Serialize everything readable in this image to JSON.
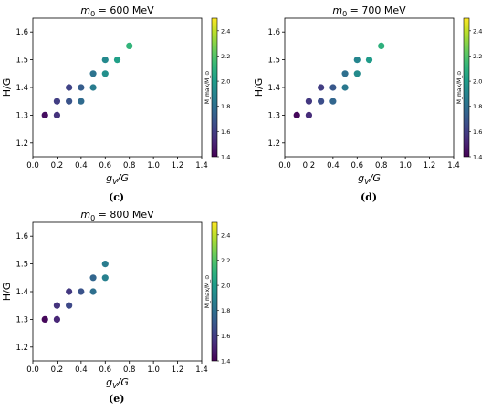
{
  "colorbar": {
    "vmin": 1.4,
    "vmax": 2.5,
    "ticks": [
      "1.4",
      "1.6",
      "1.8",
      "2.0",
      "2.2",
      "2.4"
    ],
    "tick_values": [
      1.4,
      1.6,
      1.8,
      2.0,
      2.2,
      2.4
    ],
    "label": "M_max/M_⊙",
    "colormap": "viridis"
  },
  "chart_data": [
    {
      "type": "scatter",
      "title": "m0 = 600 MeV",
      "title_prefix": "m",
      "title_sub": "0",
      "title_suffix": " = 600 MeV",
      "xlabel_main": "g",
      "xlabel_sub": "V",
      "xlabel_tail": "/G",
      "ylabel": "H/G",
      "xlim": [
        0.0,
        1.4
      ],
      "ylim": [
        1.15,
        1.65
      ],
      "xticks": [
        "0.0",
        "0.2",
        "0.4",
        "0.6",
        "0.8",
        "1.0",
        "1.2",
        "1.4"
      ],
      "yticks": [
        "1.2",
        "1.3",
        "1.4",
        "1.5",
        "1.6"
      ],
      "sublabel": "(c)",
      "points": [
        {
          "x": 0.1,
          "y": 1.3,
          "c": 1.44
        },
        {
          "x": 0.2,
          "y": 1.3,
          "c": 1.56
        },
        {
          "x": 0.2,
          "y": 1.35,
          "c": 1.6
        },
        {
          "x": 0.3,
          "y": 1.35,
          "c": 1.68
        },
        {
          "x": 0.3,
          "y": 1.4,
          "c": 1.62
        },
        {
          "x": 0.4,
          "y": 1.35,
          "c": 1.78
        },
        {
          "x": 0.4,
          "y": 1.4,
          "c": 1.72
        },
        {
          "x": 0.5,
          "y": 1.4,
          "c": 1.86
        },
        {
          "x": 0.5,
          "y": 1.45,
          "c": 1.82
        },
        {
          "x": 0.6,
          "y": 1.45,
          "c": 1.95
        },
        {
          "x": 0.6,
          "y": 1.5,
          "c": 1.92
        },
        {
          "x": 0.7,
          "y": 1.5,
          "c": 2.02
        },
        {
          "x": 0.8,
          "y": 1.55,
          "c": 2.12
        }
      ]
    },
    {
      "type": "scatter",
      "title": "m0 = 700 MeV",
      "title_prefix": "m",
      "title_sub": "0",
      "title_suffix": " = 700 MeV",
      "xlabel_main": "g",
      "xlabel_sub": "V",
      "xlabel_tail": "/G",
      "ylabel": "H/G",
      "xlim": [
        0.0,
        1.4
      ],
      "ylim": [
        1.15,
        1.65
      ],
      "xticks": [
        "0.0",
        "0.2",
        "0.4",
        "0.6",
        "0.8",
        "1.0",
        "1.2",
        "1.4"
      ],
      "yticks": [
        "1.2",
        "1.3",
        "1.4",
        "1.5",
        "1.6"
      ],
      "sublabel": "(d)",
      "points": [
        {
          "x": 0.1,
          "y": 1.3,
          "c": 1.42
        },
        {
          "x": 0.2,
          "y": 1.3,
          "c": 1.54
        },
        {
          "x": 0.2,
          "y": 1.35,
          "c": 1.58
        },
        {
          "x": 0.3,
          "y": 1.35,
          "c": 1.66
        },
        {
          "x": 0.3,
          "y": 1.4,
          "c": 1.6
        },
        {
          "x": 0.4,
          "y": 1.35,
          "c": 1.76
        },
        {
          "x": 0.4,
          "y": 1.4,
          "c": 1.7
        },
        {
          "x": 0.5,
          "y": 1.4,
          "c": 1.84
        },
        {
          "x": 0.5,
          "y": 1.45,
          "c": 1.8
        },
        {
          "x": 0.6,
          "y": 1.45,
          "c": 1.93
        },
        {
          "x": 0.6,
          "y": 1.5,
          "c": 1.9
        },
        {
          "x": 0.7,
          "y": 1.5,
          "c": 2.0
        },
        {
          "x": 0.8,
          "y": 1.55,
          "c": 2.1
        }
      ]
    },
    {
      "type": "scatter",
      "title": "m0 = 800 MeV",
      "title_prefix": "m",
      "title_sub": "0",
      "title_suffix": " = 800 MeV",
      "xlabel_main": "g",
      "xlabel_sub": "V",
      "xlabel_tail": "/G",
      "ylabel": "H/G",
      "xlim": [
        0.0,
        1.4
      ],
      "ylim": [
        1.15,
        1.65
      ],
      "xticks": [
        "0.0",
        "0.2",
        "0.4",
        "0.6",
        "0.8",
        "1.0",
        "1.2",
        "1.4"
      ],
      "yticks": [
        "1.2",
        "1.3",
        "1.4",
        "1.5",
        "1.6"
      ],
      "sublabel": "(e)",
      "points": [
        {
          "x": 0.1,
          "y": 1.3,
          "c": 1.42
        },
        {
          "x": 0.2,
          "y": 1.3,
          "c": 1.52
        },
        {
          "x": 0.2,
          "y": 1.35,
          "c": 1.56
        },
        {
          "x": 0.3,
          "y": 1.35,
          "c": 1.64
        },
        {
          "x": 0.3,
          "y": 1.4,
          "c": 1.58
        },
        {
          "x": 0.4,
          "y": 1.4,
          "c": 1.68
        },
        {
          "x": 0.5,
          "y": 1.4,
          "c": 1.8
        },
        {
          "x": 0.5,
          "y": 1.45,
          "c": 1.76
        },
        {
          "x": 0.6,
          "y": 1.45,
          "c": 1.88
        },
        {
          "x": 0.6,
          "y": 1.5,
          "c": 1.86
        }
      ]
    }
  ]
}
